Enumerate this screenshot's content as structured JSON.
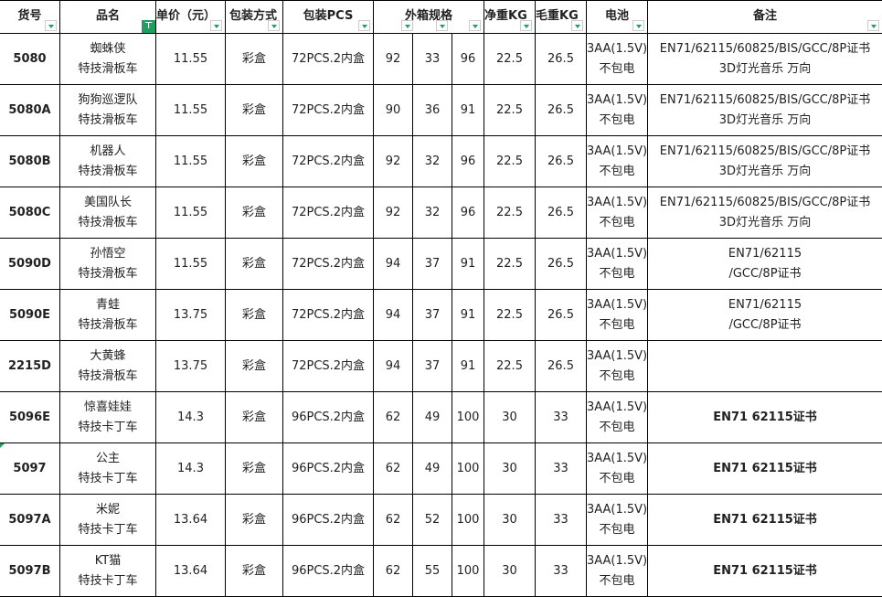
{
  "headers": {
    "id": "货号",
    "name": "品名",
    "price": "单价（元）",
    "pack": "包装方式",
    "pcs": "包装PCS",
    "carton": "外箱规格",
    "net": "净重KG",
    "gross": "毛重KG",
    "battery": "电池",
    "remark": "备注"
  },
  "accent": "#1e9e5f",
  "rows": [
    {
      "id": "5080",
      "name1": "蜘蛛侠",
      "name2": "特技滑板车",
      "price": "11.55",
      "pack": "彩盒",
      "pcs": "72PCS.2内盒",
      "l": "92",
      "w": "33",
      "h": "96",
      "net": "22.5",
      "gross": "26.5",
      "bat1": "3AA(1.5V)",
      "bat2": "不包电",
      "rem1": "EN71/62115/60825/BIS/GCC/8P证书",
      "rem2": "3D灯光音乐 万向"
    },
    {
      "id": "5080A",
      "name1": "狗狗巡逻队",
      "name2": "特技滑板车",
      "price": "11.55",
      "pack": "彩盒",
      "pcs": "72PCS.2内盒",
      "l": "90",
      "w": "36",
      "h": "91",
      "net": "22.5",
      "gross": "26.5",
      "bat1": "3AA(1.5V)",
      "bat2": "不包电",
      "rem1": "EN71/62115/60825/BIS/GCC/8P证书",
      "rem2": "3D灯光音乐 万向"
    },
    {
      "id": "5080B",
      "name1": "机器人",
      "name2": "特技滑板车",
      "price": "11.55",
      "pack": "彩盒",
      "pcs": "72PCS.2内盒",
      "l": "92",
      "w": "32",
      "h": "96",
      "net": "22.5",
      "gross": "26.5",
      "bat1": "3AA(1.5V)",
      "bat2": "不包电",
      "rem1": "EN71/62115/60825/BIS/GCC/8P证书",
      "rem2": "3D灯光音乐 万向"
    },
    {
      "id": "5080C",
      "name1": "美国队长",
      "name2": "特技滑板车",
      "price": "11.55",
      "pack": "彩盒",
      "pcs": "72PCS.2内盒",
      "l": "92",
      "w": "32",
      "h": "96",
      "net": "22.5",
      "gross": "26.5",
      "bat1": "3AA(1.5V)",
      "bat2": "不包电",
      "rem1": "EN71/62115/60825/BIS/GCC/8P证书",
      "rem2": "3D灯光音乐 万向"
    },
    {
      "id": "5090D",
      "name1": "孙悟空",
      "name2": "特技滑板车",
      "price": "11.55",
      "pack": "彩盒",
      "pcs": "72PCS.2内盒",
      "l": "94",
      "w": "37",
      "h": "91",
      "net": "22.5",
      "gross": "26.5",
      "bat1": "3AA(1.5V)",
      "bat2": "不包电",
      "rem1": "EN71/62115",
      "rem2": "/GCC/8P证书"
    },
    {
      "id": "5090E",
      "name1": "青蛙",
      "name2": "特技滑板车",
      "price": "13.75",
      "pack": "彩盒",
      "pcs": "72PCS.2内盒",
      "l": "94",
      "w": "37",
      "h": "91",
      "net": "22.5",
      "gross": "26.5",
      "bat1": "3AA(1.5V)",
      "bat2": "不包电",
      "rem1": "EN71/62115",
      "rem2": "/GCC/8P证书"
    },
    {
      "id": "2215D",
      "name1": "大黄蜂",
      "name2": "特技滑板车",
      "price": "13.75",
      "pack": "彩盒",
      "pcs": "72PCS.2内盒",
      "l": "94",
      "w": "37",
      "h": "91",
      "net": "22.5",
      "gross": "26.5",
      "bat1": "3AA(1.5V)",
      "bat2": "不包电",
      "rem1": "",
      "rem2": ""
    },
    {
      "id": "5096E",
      "name1": "惊喜娃娃",
      "name2": "特技卡丁车",
      "price": "14.3",
      "pack": "彩盒",
      "pcs": "96PCS.2内盒",
      "l": "62",
      "w": "49",
      "h": "100",
      "net": "30",
      "gross": "33",
      "bat1": "3AA(1.5V)",
      "bat2": "不包电",
      "rem1": "EN71 62115证书",
      "rem2": "",
      "bold": true
    },
    {
      "id": "5097",
      "name1": "公主",
      "name2": "特技卡丁车",
      "price": "14.3",
      "pack": "彩盒",
      "pcs": "96PCS.2内盒",
      "l": "62",
      "w": "49",
      "h": "100",
      "net": "30",
      "gross": "33",
      "bat1": "3AA(1.5V)",
      "bat2": "不包电",
      "rem1": "EN71 62115证书",
      "rem2": "",
      "bold": true
    },
    {
      "id": "5097A",
      "name1": "米妮",
      "name2": "特技卡丁车",
      "price": "13.64",
      "pack": "彩盒",
      "pcs": "96PCS.2内盒",
      "l": "62",
      "w": "52",
      "h": "100",
      "net": "30",
      "gross": "33",
      "bat1": "3AA(1.5V)",
      "bat2": "不包电",
      "rem1": "EN71 62115证书",
      "rem2": "",
      "bold": true
    },
    {
      "id": "5097B",
      "name1": "KT猫",
      "name2": "特技卡丁车",
      "price": "13.64",
      "pack": "彩盒",
      "pcs": "96PCS.2内盒",
      "l": "62",
      "w": "55",
      "h": "100",
      "net": "30",
      "gross": "33",
      "bat1": "3AA(1.5V)",
      "bat2": "不包电",
      "rem1": "EN71 62115证书",
      "rem2": "",
      "bold": true
    }
  ]
}
